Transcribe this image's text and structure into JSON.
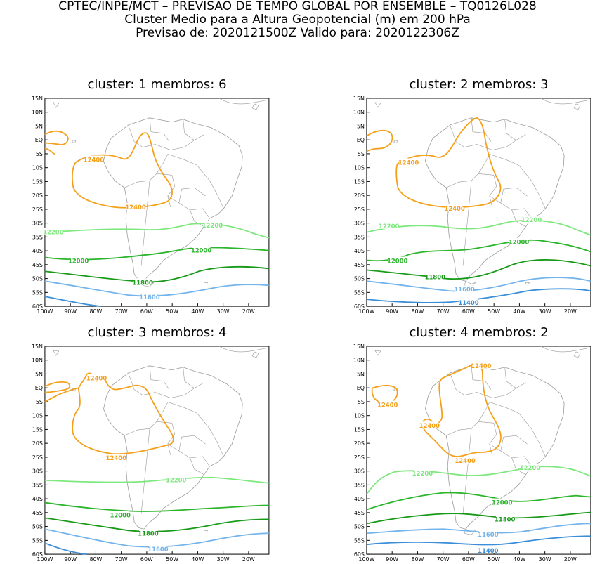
{
  "header": {
    "line1": "CPTEC/INPE/MCT – PREVISAO DE TEMPO GLOBAL POR ENSEMBLE – TQ0126L028",
    "line2": "Cluster Medio para a Altura Geopotencial (m) em 200 hPa",
    "line3": "Previsao de: 2020121500Z    Valido para: 2020122306Z"
  },
  "axes": {
    "lat_labels": [
      "15N",
      "10N",
      "5N",
      "EQ",
      "5S",
      "10S",
      "15S",
      "20S",
      "25S",
      "30S",
      "35S",
      "40S",
      "45S",
      "50S",
      "55S",
      "60S"
    ],
    "lon_labels": [
      "100W",
      "90W",
      "80W",
      "70W",
      "60W",
      "50W",
      "40W",
      "30W",
      "20W"
    ]
  },
  "colors": {
    "c12400": "#f5a01a",
    "c12200": "#7ee87e",
    "c12000": "#2ab52a",
    "c11800": "#189a18",
    "c11600": "#74b4ec",
    "c11400": "#3a8ed8",
    "coast": "#9a9a9a"
  },
  "panels": [
    {
      "title": "cluster: 1   membros: 6",
      "contour_labels": [
        {
          "text": "12400",
          "level": "12400"
        },
        {
          "text": "12400",
          "level": "12400"
        },
        {
          "text": "12200",
          "level": "12200"
        },
        {
          "text": "12200",
          "level": "12200"
        },
        {
          "text": "12000",
          "level": "12000"
        },
        {
          "text": "12000",
          "level": "12000"
        },
        {
          "text": "11800",
          "level": "11800"
        },
        {
          "text": "11600",
          "level": "11600"
        }
      ]
    },
    {
      "title": "cluster: 2   membros: 3",
      "contour_labels": [
        {
          "text": "12400",
          "level": "12400"
        },
        {
          "text": "12400",
          "level": "12400"
        },
        {
          "text": "12200",
          "level": "12200"
        },
        {
          "text": "12200",
          "level": "12200"
        },
        {
          "text": "12000",
          "level": "12000"
        },
        {
          "text": "12000",
          "level": "12000"
        },
        {
          "text": "11800",
          "level": "11800"
        },
        {
          "text": "11600",
          "level": "11600"
        },
        {
          "text": "11400",
          "level": "11400"
        }
      ]
    },
    {
      "title": "cluster: 3   membros: 4",
      "contour_labels": [
        {
          "text": "12400",
          "level": "12400"
        },
        {
          "text": "12400",
          "level": "12400"
        },
        {
          "text": "12200",
          "level": "12200"
        },
        {
          "text": "12000",
          "level": "12000"
        },
        {
          "text": "11800",
          "level": "11800"
        },
        {
          "text": "11600",
          "level": "11600"
        }
      ]
    },
    {
      "title": "cluster: 4   membros: 2",
      "contour_labels": [
        {
          "text": "12400",
          "level": "12400"
        },
        {
          "text": "12400",
          "level": "12400"
        },
        {
          "text": "12400",
          "level": "12400"
        },
        {
          "text": "12400",
          "level": "12400"
        },
        {
          "text": "12200",
          "level": "12200"
        },
        {
          "text": "12200",
          "level": "12200"
        },
        {
          "text": "12000",
          "level": "12000"
        },
        {
          "text": "11800",
          "level": "11800"
        },
        {
          "text": "11600",
          "level": "11600"
        },
        {
          "text": "11400",
          "level": "11400"
        }
      ]
    }
  ]
}
